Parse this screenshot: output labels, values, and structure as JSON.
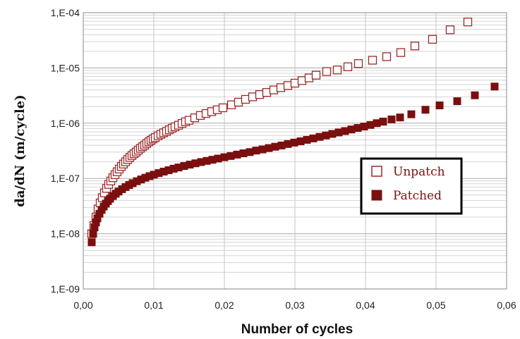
{
  "chart_data": {
    "type": "scatter",
    "title": "",
    "xlabel": "Number of cycles",
    "ylabel": "da/dN (m/cycle)",
    "xlim": [
      0,
      0.06
    ],
    "ylim": [
      1e-09,
      0.0001
    ],
    "yscale": "log",
    "grid": true,
    "legend_position": "inside-right",
    "x_ticks": [
      "0,00",
      "0,01",
      "0,02",
      "0,03",
      "0,04",
      "0,05",
      "0,06"
    ],
    "y_ticks": [
      "1,E-09",
      "1,E-08",
      "1,E-07",
      "1,E-06",
      "1,E-05",
      "1,E-04"
    ],
    "series": [
      {
        "name": "Unpatch",
        "marker": "open-square",
        "color": "#9b2a2a",
        "x": [
          0.0012,
          0.0015,
          0.0018,
          0.0021,
          0.0024,
          0.0027,
          0.003,
          0.0033,
          0.0036,
          0.0039,
          0.0042,
          0.0045,
          0.0048,
          0.0051,
          0.0054,
          0.0057,
          0.006,
          0.0063,
          0.0066,
          0.0069,
          0.0072,
          0.0075,
          0.0078,
          0.0081,
          0.0084,
          0.0087,
          0.009,
          0.0093,
          0.0096,
          0.0099,
          0.0102,
          0.0106,
          0.011,
          0.0114,
          0.0118,
          0.0122,
          0.0126,
          0.013,
          0.0135,
          0.014,
          0.0145,
          0.015,
          0.0158,
          0.0166,
          0.0174,
          0.0182,
          0.019,
          0.0198,
          0.021,
          0.022,
          0.023,
          0.024,
          0.025,
          0.026,
          0.027,
          0.028,
          0.029,
          0.03,
          0.031,
          0.032,
          0.033,
          0.0345,
          0.036,
          0.0375,
          0.039,
          0.041,
          0.043,
          0.045,
          0.047,
          0.0495,
          0.052,
          0.0545
        ],
        "y": [
          1e-08,
          1.4e-08,
          2e-08,
          2.8e-08,
          3.6e-08,
          4.5e-08,
          5.5e-08,
          6.6e-08,
          7.8e-08,
          9e-08,
          1.03e-07,
          1.17e-07,
          1.32e-07,
          1.48e-07,
          1.65e-07,
          1.82e-07,
          2e-07,
          2.2e-07,
          2.4e-07,
          2.6e-07,
          2.8e-07,
          3e-07,
          3.25e-07,
          3.5e-07,
          3.75e-07,
          4e-07,
          4.3e-07,
          4.6e-07,
          4.9e-07,
          5.2e-07,
          5.5e-07,
          5.9e-07,
          6.3e-07,
          6.7e-07,
          7.1e-07,
          7.6e-07,
          8.1e-07,
          8.6e-07,
          9.2e-07,
          9.9e-07,
          1.06e-06,
          1.13e-06,
          1.25e-06,
          1.38e-06,
          1.5e-06,
          1.62e-06,
          1.75e-06,
          1.9e-06,
          2.15e-06,
          2.4e-06,
          2.7e-06,
          3e-06,
          3.3e-06,
          3.6e-06,
          4e-06,
          4.4e-06,
          4.8e-06,
          5.3e-06,
          5.9e-06,
          6.6e-06,
          7.4e-06,
          8.6e-06,
          9.2e-06,
          1.05e-05,
          1.2e-05,
          1.38e-05,
          1.6e-05,
          1.9e-05,
          2.5e-05,
          3.3e-05,
          4.9e-05,
          6.8e-05
        ]
      },
      {
        "name": "Patched",
        "marker": "filled-square",
        "color": "#7a0f0f",
        "x": [
          0.0012,
          0.0014,
          0.0016,
          0.0018,
          0.002,
          0.0023,
          0.0026,
          0.0029,
          0.0032,
          0.0035,
          0.0038,
          0.0042,
          0.0046,
          0.005,
          0.0055,
          0.006,
          0.0065,
          0.007,
          0.0076,
          0.0082,
          0.0088,
          0.0094,
          0.01,
          0.0107,
          0.0114,
          0.0121,
          0.0128,
          0.0135,
          0.0143,
          0.0151,
          0.0159,
          0.0167,
          0.0175,
          0.0183,
          0.0191,
          0.02,
          0.0209,
          0.0218,
          0.0227,
          0.0236,
          0.0245,
          0.0254,
          0.0263,
          0.0272,
          0.0281,
          0.029,
          0.0299,
          0.0308,
          0.0317,
          0.0326,
          0.0335,
          0.0344,
          0.0353,
          0.0362,
          0.0371,
          0.038,
          0.0389,
          0.0398,
          0.0407,
          0.0416,
          0.0425,
          0.0437,
          0.0449,
          0.0465,
          0.0485,
          0.0505,
          0.053,
          0.0555,
          0.0583
        ],
        "y": [
          7e-09,
          1e-08,
          1.3e-08,
          1.6e-08,
          1.9e-08,
          2.3e-08,
          2.7e-08,
          3.1e-08,
          3.5e-08,
          3.9e-08,
          4.3e-08,
          4.8e-08,
          5.3e-08,
          5.8e-08,
          6.4e-08,
          7e-08,
          7.6e-08,
          8.2e-08,
          8.9e-08,
          9.6e-08,
          1.03e-07,
          1.1e-07,
          1.17e-07,
          1.25e-07,
          1.33e-07,
          1.41e-07,
          1.5e-07,
          1.58e-07,
          1.68e-07,
          1.78e-07,
          1.88e-07,
          1.98e-07,
          2.08e-07,
          2.18e-07,
          2.29e-07,
          2.42e-07,
          2.55e-07,
          2.7e-07,
          2.85e-07,
          3e-07,
          3.2e-07,
          3.35e-07,
          3.55e-07,
          3.75e-07,
          3.95e-07,
          4.2e-07,
          4.45e-07,
          4.7e-07,
          5e-07,
          5.3e-07,
          5.65e-07,
          6e-07,
          6.4e-07,
          6.8e-07,
          7.2e-07,
          7.7e-07,
          8.2e-07,
          8.7e-07,
          9.3e-07,
          1e-06,
          1.07e-06,
          1.17e-06,
          1.27e-06,
          1.45e-06,
          1.75e-06,
          2.1e-06,
          2.5e-06,
          3.2e-06,
          4.6e-06
        ]
      }
    ]
  },
  "legend": {
    "unpatch_label": "Unpatch",
    "patched_label": "Patched"
  }
}
